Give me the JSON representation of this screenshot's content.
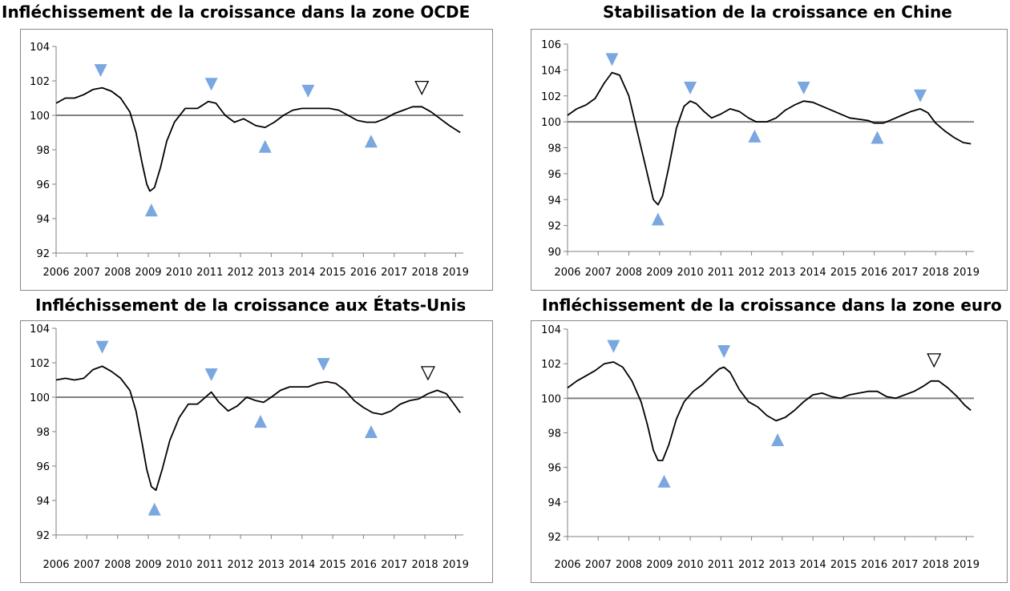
{
  "colors": {
    "series_line": "#000000",
    "baseline": "#808080",
    "axis": "#808080",
    "marker_fill": "#7aa7e0",
    "marker_outline": "#000000"
  },
  "chart_data": [
    {
      "type": "line",
      "title": "Infléchissement de la croissance dans la zone OCDE",
      "xlim": [
        2006,
        2019.25
      ],
      "ylim": [
        92,
        104
      ],
      "yticks": [
        92,
        94,
        96,
        98,
        100,
        102,
        104
      ],
      "xticks": [
        2006,
        2007,
        2008,
        2009,
        2010,
        2011,
        2012,
        2013,
        2014,
        2015,
        2016,
        2017,
        2018,
        2019
      ],
      "baseline": 100,
      "grid": false,
      "series": [
        {
          "x": [
            2006.0,
            2006.3,
            2006.6,
            2006.9,
            2007.2,
            2007.5,
            2007.8,
            2008.1,
            2008.4,
            2008.6,
            2008.8,
            2008.95,
            2009.05,
            2009.2,
            2009.4,
            2009.6,
            2009.85,
            2010.2,
            2010.6,
            2010.95,
            2011.2,
            2011.5,
            2011.8,
            2012.1,
            2012.5,
            2012.8,
            2013.1,
            2013.4,
            2013.7,
            2014.0,
            2014.3,
            2014.6,
            2014.9,
            2015.2,
            2015.5,
            2015.8,
            2016.1,
            2016.4,
            2016.7,
            2017.0,
            2017.3,
            2017.6,
            2017.9,
            2018.2,
            2018.5,
            2018.8,
            2019.15
          ],
          "y": [
            100.7,
            101.0,
            101.0,
            101.2,
            101.5,
            101.6,
            101.4,
            101.0,
            100.2,
            99.0,
            97.2,
            96.0,
            95.6,
            95.8,
            97.0,
            98.5,
            99.6,
            100.4,
            100.4,
            100.8,
            100.7,
            100.0,
            99.6,
            99.8,
            99.4,
            99.3,
            99.6,
            100.0,
            100.3,
            100.4,
            100.4,
            100.4,
            100.4,
            100.3,
            100.0,
            99.7,
            99.6,
            99.6,
            99.8,
            100.1,
            100.3,
            100.5,
            100.5,
            100.2,
            99.8,
            99.4,
            99.0
          ]
        }
      ],
      "markers": [
        {
          "x": 2007.45,
          "y": 102.6,
          "type": "peak"
        },
        {
          "x": 2009.1,
          "y": 94.5,
          "type": "trough"
        },
        {
          "x": 2011.05,
          "y": 101.8,
          "type": "peak"
        },
        {
          "x": 2012.8,
          "y": 98.2,
          "type": "trough"
        },
        {
          "x": 2014.2,
          "y": 101.4,
          "type": "peak"
        },
        {
          "x": 2016.25,
          "y": 98.5,
          "type": "trough"
        },
        {
          "x": 2017.9,
          "y": 101.6,
          "type": "possible-peak"
        }
      ]
    },
    {
      "type": "line",
      "title": "Stabilisation de la croissance en Chine",
      "xlim": [
        2006,
        2019.25
      ],
      "ylim": [
        90,
        106
      ],
      "yticks": [
        90,
        92,
        94,
        96,
        98,
        100,
        102,
        104,
        106
      ],
      "xticks": [
        2006,
        2007,
        2008,
        2009,
        2010,
        2011,
        2012,
        2013,
        2014,
        2015,
        2016,
        2017,
        2018,
        2019
      ],
      "baseline": 100,
      "grid": false,
      "series": [
        {
          "x": [
            2006.0,
            2006.3,
            2006.6,
            2006.9,
            2007.2,
            2007.45,
            2007.7,
            2008.0,
            2008.3,
            2008.55,
            2008.8,
            2008.95,
            2009.1,
            2009.3,
            2009.55,
            2009.8,
            2010.0,
            2010.2,
            2010.45,
            2010.7,
            2011.0,
            2011.3,
            2011.6,
            2011.9,
            2012.15,
            2012.5,
            2012.8,
            2013.1,
            2013.4,
            2013.7,
            2014.0,
            2014.3,
            2014.6,
            2014.9,
            2015.2,
            2015.5,
            2015.8,
            2016.0,
            2016.3,
            2016.6,
            2016.9,
            2017.2,
            2017.5,
            2017.75,
            2018.0,
            2018.3,
            2018.6,
            2018.9,
            2019.15
          ],
          "y": [
            100.5,
            101.0,
            101.3,
            101.8,
            103.0,
            103.8,
            103.6,
            102.0,
            99.0,
            96.5,
            94.0,
            93.6,
            94.3,
            96.5,
            99.5,
            101.2,
            101.6,
            101.4,
            100.8,
            100.3,
            100.6,
            101.0,
            100.8,
            100.3,
            100.0,
            100.0,
            100.3,
            100.9,
            101.3,
            101.6,
            101.5,
            101.2,
            100.9,
            100.6,
            100.3,
            100.2,
            100.1,
            99.9,
            99.9,
            100.2,
            100.5,
            100.8,
            101.0,
            100.7,
            99.9,
            99.3,
            98.8,
            98.4,
            98.3
          ]
        }
      ],
      "markers": [
        {
          "x": 2007.45,
          "y": 104.8,
          "type": "peak"
        },
        {
          "x": 2008.95,
          "y": 92.5,
          "type": "trough"
        },
        {
          "x": 2010.0,
          "y": 102.6,
          "type": "peak"
        },
        {
          "x": 2012.1,
          "y": 98.9,
          "type": "trough"
        },
        {
          "x": 2013.7,
          "y": 102.6,
          "type": "peak"
        },
        {
          "x": 2016.1,
          "y": 98.8,
          "type": "trough"
        },
        {
          "x": 2017.5,
          "y": 102.0,
          "type": "peak"
        }
      ]
    },
    {
      "type": "line",
      "title": "Infléchissement de la croissance aux États-Unis",
      "xlim": [
        2006,
        2019.25
      ],
      "ylim": [
        92,
        104
      ],
      "yticks": [
        92,
        94,
        96,
        98,
        100,
        102,
        104
      ],
      "xticks": [
        2006,
        2007,
        2008,
        2009,
        2010,
        2011,
        2012,
        2013,
        2014,
        2015,
        2016,
        2017,
        2018,
        2019
      ],
      "baseline": 100,
      "grid": false,
      "series": [
        {
          "x": [
            2006.0,
            2006.3,
            2006.6,
            2006.9,
            2007.2,
            2007.5,
            2007.8,
            2008.1,
            2008.4,
            2008.6,
            2008.8,
            2008.95,
            2009.1,
            2009.25,
            2009.45,
            2009.7,
            2010.0,
            2010.3,
            2010.6,
            2010.8,
            2011.05,
            2011.3,
            2011.6,
            2011.9,
            2012.2,
            2012.5,
            2012.75,
            2013.0,
            2013.3,
            2013.6,
            2013.9,
            2014.2,
            2014.5,
            2014.8,
            2015.1,
            2015.4,
            2015.7,
            2016.0,
            2016.3,
            2016.6,
            2016.9,
            2017.2,
            2017.5,
            2017.8,
            2018.1,
            2018.4,
            2018.7,
            2018.95,
            2019.15
          ],
          "y": [
            101.0,
            101.1,
            101.0,
            101.1,
            101.6,
            101.8,
            101.5,
            101.1,
            100.4,
            99.2,
            97.3,
            95.8,
            94.8,
            94.6,
            95.8,
            97.5,
            98.8,
            99.6,
            99.6,
            99.9,
            100.3,
            99.7,
            99.2,
            99.5,
            100.0,
            99.8,
            99.7,
            100.0,
            100.4,
            100.6,
            100.6,
            100.6,
            100.8,
            100.9,
            100.8,
            100.4,
            99.8,
            99.4,
            99.1,
            99.0,
            99.2,
            99.6,
            99.8,
            99.9,
            100.2,
            100.4,
            100.2,
            99.6,
            99.1
          ]
        }
      ],
      "markers": [
        {
          "x": 2007.5,
          "y": 102.9,
          "type": "peak"
        },
        {
          "x": 2009.2,
          "y": 93.5,
          "type": "trough"
        },
        {
          "x": 2011.05,
          "y": 101.3,
          "type": "peak"
        },
        {
          "x": 2012.65,
          "y": 98.6,
          "type": "trough"
        },
        {
          "x": 2014.7,
          "y": 101.9,
          "type": "peak"
        },
        {
          "x": 2016.25,
          "y": 98.0,
          "type": "trough"
        },
        {
          "x": 2018.1,
          "y": 101.4,
          "type": "possible-peak"
        }
      ]
    },
    {
      "type": "line",
      "title": "Infléchissement de la croissance dans la zone euro",
      "xlim": [
        2006,
        2019.25
      ],
      "ylim": [
        92,
        104
      ],
      "yticks": [
        92,
        94,
        96,
        98,
        100,
        102,
        104
      ],
      "xticks": [
        2006,
        2007,
        2008,
        2009,
        2010,
        2011,
        2012,
        2013,
        2014,
        2015,
        2016,
        2017,
        2018,
        2019
      ],
      "baseline": 100,
      "grid": false,
      "series": [
        {
          "x": [
            2006.0,
            2006.3,
            2006.6,
            2006.9,
            2007.2,
            2007.5,
            2007.8,
            2008.1,
            2008.4,
            2008.6,
            2008.8,
            2008.95,
            2009.1,
            2009.3,
            2009.55,
            2009.8,
            2010.1,
            2010.4,
            2010.7,
            2010.95,
            2011.1,
            2011.3,
            2011.6,
            2011.9,
            2012.2,
            2012.5,
            2012.8,
            2013.1,
            2013.4,
            2013.7,
            2014.0,
            2014.3,
            2014.6,
            2014.9,
            2015.2,
            2015.5,
            2015.8,
            2016.1,
            2016.4,
            2016.7,
            2017.0,
            2017.3,
            2017.6,
            2017.85,
            2018.1,
            2018.4,
            2018.7,
            2018.95,
            2019.15
          ],
          "y": [
            100.6,
            101.0,
            101.3,
            101.6,
            102.0,
            102.1,
            101.8,
            101.0,
            99.8,
            98.5,
            97.0,
            96.4,
            96.4,
            97.3,
            98.8,
            99.8,
            100.4,
            100.8,
            101.3,
            101.7,
            101.8,
            101.5,
            100.5,
            99.8,
            99.5,
            99.0,
            98.7,
            98.9,
            99.3,
            99.8,
            100.2,
            100.3,
            100.1,
            100.0,
            100.2,
            100.3,
            100.4,
            100.4,
            100.1,
            100.0,
            100.2,
            100.4,
            100.7,
            101.0,
            101.0,
            100.6,
            100.1,
            99.6,
            99.3
          ]
        }
      ],
      "markers": [
        {
          "x": 2007.5,
          "y": 103.0,
          "type": "peak"
        },
        {
          "x": 2009.15,
          "y": 95.2,
          "type": "trough"
        },
        {
          "x": 2011.1,
          "y": 102.7,
          "type": "peak"
        },
        {
          "x": 2012.85,
          "y": 97.6,
          "type": "trough"
        },
        {
          "x": 2017.95,
          "y": 102.2,
          "type": "possible-peak"
        }
      ]
    }
  ]
}
